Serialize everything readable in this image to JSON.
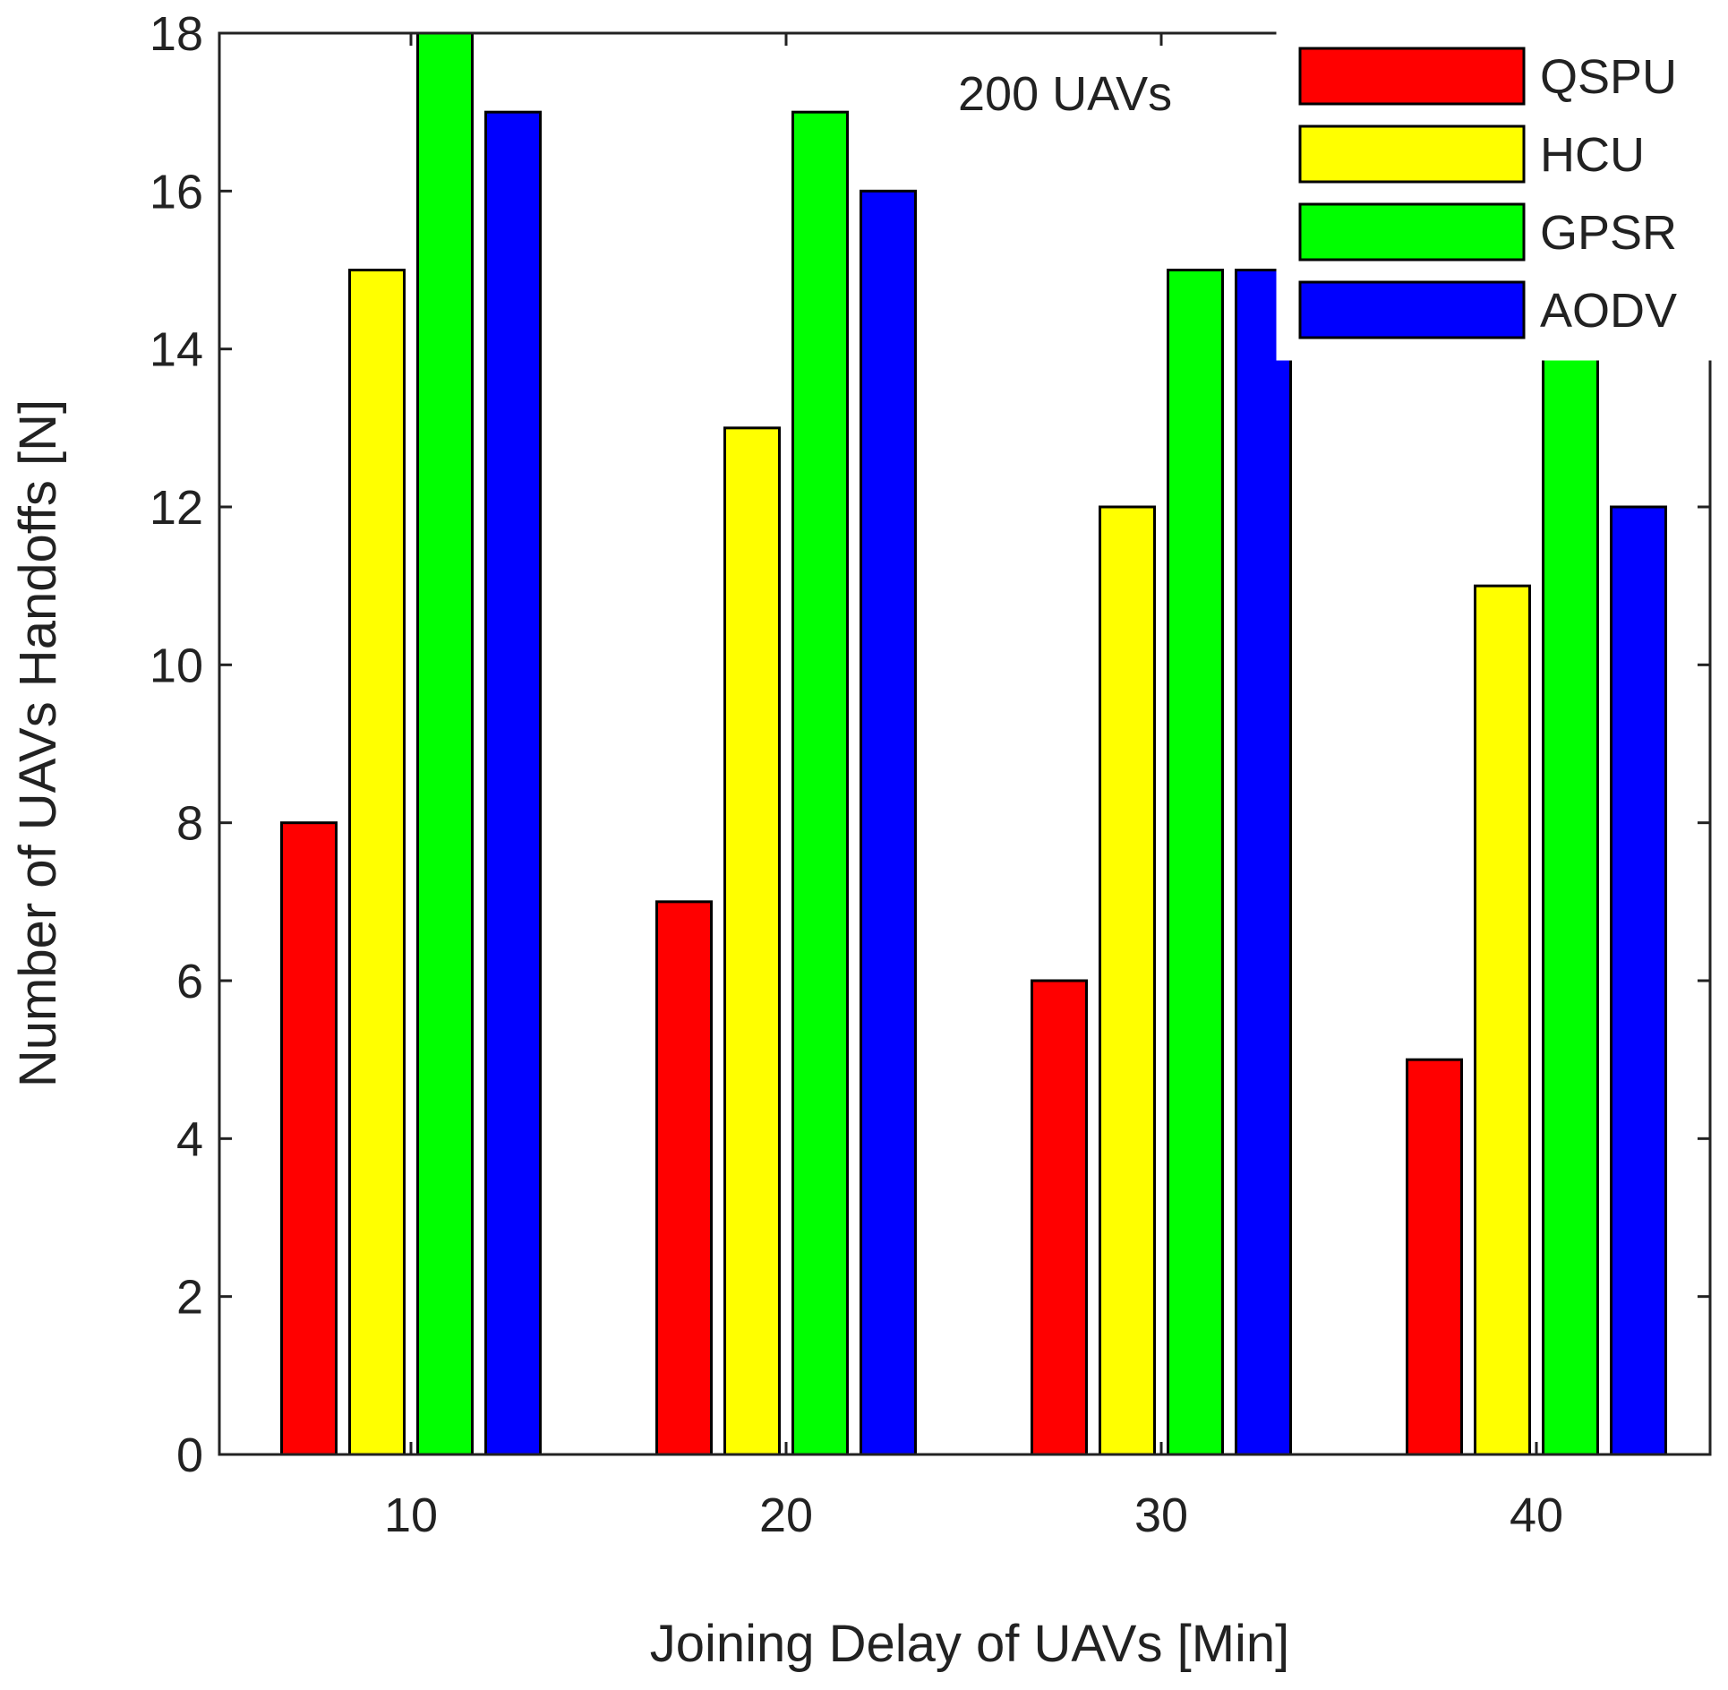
{
  "chart_data": {
    "type": "bar",
    "title": "",
    "annotation": "200 UAVs",
    "xlabel": "Joining Delay of UAVs [Min]",
    "ylabel": "Number of UAVs Handoffs [N]",
    "categories": [
      "10",
      "20",
      "30",
      "40"
    ],
    "ylim": [
      0,
      18
    ],
    "yticks": [
      0,
      2,
      4,
      6,
      8,
      10,
      12,
      14,
      16,
      18
    ],
    "ytick_labels": [
      "0",
      "2",
      "4",
      "6",
      "8",
      "10",
      "12",
      "14",
      "16",
      "18"
    ],
    "grid": false,
    "legend_position": "top-right",
    "series": [
      {
        "name": "QSPU",
        "color": "#ff0000",
        "values": [
          8,
          7,
          6,
          5
        ]
      },
      {
        "name": "HCU",
        "color": "#ffff00",
        "values": [
          15,
          13,
          12,
          11
        ]
      },
      {
        "name": "GPSR",
        "color": "#00ff00",
        "values": [
          18,
          17,
          15,
          14
        ]
      },
      {
        "name": "AODV",
        "color": "#0000ff",
        "values": [
          17,
          16,
          15,
          12
        ]
      }
    ]
  }
}
